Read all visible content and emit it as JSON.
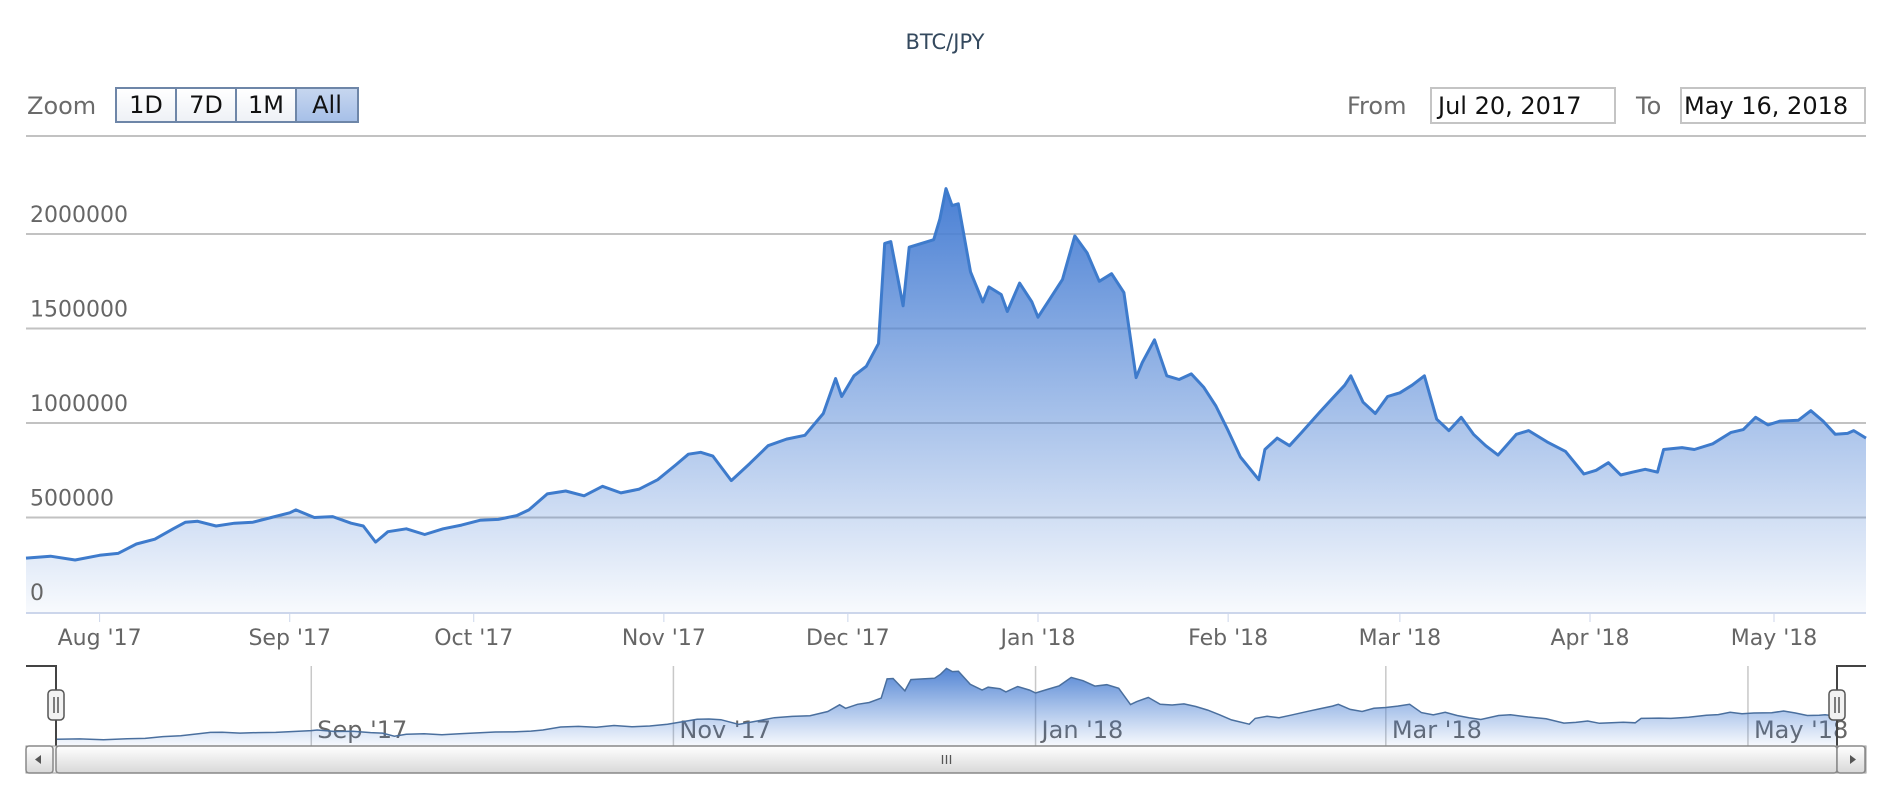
{
  "title": "BTC/JPY",
  "range_selector": {
    "zoom_label": "Zoom",
    "buttons": [
      {
        "label": "1D",
        "active": false
      },
      {
        "label": "7D",
        "active": false
      },
      {
        "label": "1M",
        "active": false
      },
      {
        "label": "All",
        "active": true
      }
    ],
    "from_label": "From",
    "from_value": "Jul 20, 2017",
    "to_label": "To",
    "to_value": "May 16, 2018"
  },
  "colors": {
    "series_line": "#3e7bcc",
    "series_fill_top": "#4a80d4",
    "grid": "#c2c2c2",
    "button_active": "#b0c6ea"
  },
  "chart_data": {
    "type": "area",
    "title": "BTC/JPY",
    "xlim": [
      "2017-07-20",
      "2018-05-16"
    ],
    "ylim": [
      0,
      2400000
    ],
    "yticks": [
      "0",
      "500000",
      "1000000",
      "1500000",
      "2000000"
    ],
    "ytick_values": [
      0,
      500000,
      1000000,
      1500000,
      2000000
    ],
    "xticks": [
      {
        "date": "2017-08-01",
        "label": "Aug '17"
      },
      {
        "date": "2017-09-01",
        "label": "Sep '17"
      },
      {
        "date": "2017-10-01",
        "label": "Oct '17"
      },
      {
        "date": "2017-11-01",
        "label": "Nov '17"
      },
      {
        "date": "2017-12-01",
        "label": "Dec '17"
      },
      {
        "date": "2018-01-01",
        "label": "Jan '18"
      },
      {
        "date": "2018-02-01",
        "label": "Feb '18"
      },
      {
        "date": "2018-03-01",
        "label": "Mar '18"
      },
      {
        "date": "2018-04-01",
        "label": "Apr '18"
      },
      {
        "date": "2018-05-01",
        "label": "May '18"
      }
    ],
    "navigator_xticks": [
      {
        "date": "2017-09-01",
        "label": "Sep '17"
      },
      {
        "date": "2017-11-01",
        "label": "Nov '17"
      },
      {
        "date": "2018-01-01",
        "label": "Jan '18"
      },
      {
        "date": "2018-03-01",
        "label": "Mar '18"
      },
      {
        "date": "2018-05-01",
        "label": "May '18"
      }
    ],
    "grid": true,
    "legend": "none",
    "points": [
      [
        "2017-07-20",
        285000
      ],
      [
        "2017-07-24",
        295000
      ],
      [
        "2017-07-28",
        275000
      ],
      [
        "2017-08-01",
        300000
      ],
      [
        "2017-08-04",
        310000
      ],
      [
        "2017-08-07",
        360000
      ],
      [
        "2017-08-10",
        385000
      ],
      [
        "2017-08-13",
        440000
      ],
      [
        "2017-08-15",
        475000
      ],
      [
        "2017-08-17",
        480000
      ],
      [
        "2017-08-20",
        455000
      ],
      [
        "2017-08-23",
        470000
      ],
      [
        "2017-08-26",
        475000
      ],
      [
        "2017-08-29",
        500000
      ],
      [
        "2017-09-01",
        525000
      ],
      [
        "2017-09-02",
        540000
      ],
      [
        "2017-09-05",
        500000
      ],
      [
        "2017-09-08",
        505000
      ],
      [
        "2017-09-11",
        470000
      ],
      [
        "2017-09-13",
        455000
      ],
      [
        "2017-09-15",
        370000
      ],
      [
        "2017-09-17",
        425000
      ],
      [
        "2017-09-20",
        440000
      ],
      [
        "2017-09-23",
        410000
      ],
      [
        "2017-09-26",
        440000
      ],
      [
        "2017-09-29",
        460000
      ],
      [
        "2017-10-02",
        485000
      ],
      [
        "2017-10-05",
        490000
      ],
      [
        "2017-10-08",
        510000
      ],
      [
        "2017-10-10",
        540000
      ],
      [
        "2017-10-13",
        625000
      ],
      [
        "2017-10-16",
        640000
      ],
      [
        "2017-10-19",
        615000
      ],
      [
        "2017-10-22",
        665000
      ],
      [
        "2017-10-25",
        630000
      ],
      [
        "2017-10-28",
        650000
      ],
      [
        "2017-10-31",
        700000
      ],
      [
        "2017-11-03",
        780000
      ],
      [
        "2017-11-05",
        835000
      ],
      [
        "2017-11-07",
        845000
      ],
      [
        "2017-11-09",
        825000
      ],
      [
        "2017-11-12",
        695000
      ],
      [
        "2017-11-15",
        785000
      ],
      [
        "2017-11-18",
        880000
      ],
      [
        "2017-11-21",
        915000
      ],
      [
        "2017-11-24",
        935000
      ],
      [
        "2017-11-27",
        1050000
      ],
      [
        "2017-11-29",
        1235000
      ],
      [
        "2017-11-30",
        1140000
      ],
      [
        "2017-12-02",
        1250000
      ],
      [
        "2017-12-04",
        1300000
      ],
      [
        "2017-12-06",
        1420000
      ],
      [
        "2017-12-07",
        1950000
      ],
      [
        "2017-12-08",
        1960000
      ],
      [
        "2017-12-10",
        1620000
      ],
      [
        "2017-12-11",
        1930000
      ],
      [
        "2017-12-13",
        1950000
      ],
      [
        "2017-12-15",
        1970000
      ],
      [
        "2017-12-16",
        2080000
      ],
      [
        "2017-12-17",
        2240000
      ],
      [
        "2017-12-18",
        2150000
      ],
      [
        "2017-12-19",
        2160000
      ],
      [
        "2017-12-21",
        1800000
      ],
      [
        "2017-12-23",
        1640000
      ],
      [
        "2017-12-24",
        1720000
      ],
      [
        "2017-12-26",
        1680000
      ],
      [
        "2017-12-27",
        1590000
      ],
      [
        "2017-12-29",
        1740000
      ],
      [
        "2017-12-31",
        1640000
      ],
      [
        "2018-01-01",
        1560000
      ],
      [
        "2018-01-03",
        1660000
      ],
      [
        "2018-01-05",
        1760000
      ],
      [
        "2018-01-07",
        1990000
      ],
      [
        "2018-01-09",
        1900000
      ],
      [
        "2018-01-11",
        1750000
      ],
      [
        "2018-01-13",
        1790000
      ],
      [
        "2018-01-15",
        1690000
      ],
      [
        "2018-01-17",
        1240000
      ],
      [
        "2018-01-18",
        1320000
      ],
      [
        "2018-01-20",
        1440000
      ],
      [
        "2018-01-22",
        1250000
      ],
      [
        "2018-01-24",
        1230000
      ],
      [
        "2018-01-26",
        1260000
      ],
      [
        "2018-01-28",
        1190000
      ],
      [
        "2018-01-30",
        1090000
      ],
      [
        "2018-02-01",
        960000
      ],
      [
        "2018-02-03",
        820000
      ],
      [
        "2018-02-06",
        700000
      ],
      [
        "2018-02-07",
        860000
      ],
      [
        "2018-02-09",
        920000
      ],
      [
        "2018-02-11",
        880000
      ],
      [
        "2018-02-13",
        950000
      ],
      [
        "2018-02-16",
        1060000
      ],
      [
        "2018-02-18",
        1130000
      ],
      [
        "2018-02-20",
        1200000
      ],
      [
        "2018-02-21",
        1250000
      ],
      [
        "2018-02-23",
        1110000
      ],
      [
        "2018-02-25",
        1050000
      ],
      [
        "2018-02-27",
        1140000
      ],
      [
        "2018-03-01",
        1160000
      ],
      [
        "2018-03-03",
        1200000
      ],
      [
        "2018-03-05",
        1250000
      ],
      [
        "2018-03-07",
        1020000
      ],
      [
        "2018-03-09",
        960000
      ],
      [
        "2018-03-11",
        1030000
      ],
      [
        "2018-03-13",
        940000
      ],
      [
        "2018-03-15",
        880000
      ],
      [
        "2018-03-17",
        830000
      ],
      [
        "2018-03-20",
        940000
      ],
      [
        "2018-03-22",
        960000
      ],
      [
        "2018-03-25",
        900000
      ],
      [
        "2018-03-28",
        850000
      ],
      [
        "2018-03-31",
        730000
      ],
      [
        "2018-04-02",
        750000
      ],
      [
        "2018-04-04",
        790000
      ],
      [
        "2018-04-06",
        725000
      ],
      [
        "2018-04-08",
        740000
      ],
      [
        "2018-04-10",
        755000
      ],
      [
        "2018-04-12",
        740000
      ],
      [
        "2018-04-13",
        860000
      ],
      [
        "2018-04-16",
        870000
      ],
      [
        "2018-04-18",
        860000
      ],
      [
        "2018-04-21",
        890000
      ],
      [
        "2018-04-24",
        950000
      ],
      [
        "2018-04-26",
        965000
      ],
      [
        "2018-04-28",
        1030000
      ],
      [
        "2018-04-30",
        990000
      ],
      [
        "2018-05-02",
        1010000
      ],
      [
        "2018-05-05",
        1015000
      ],
      [
        "2018-05-07",
        1065000
      ],
      [
        "2018-05-09",
        1010000
      ],
      [
        "2018-05-11",
        940000
      ],
      [
        "2018-05-13",
        945000
      ],
      [
        "2018-05-14",
        960000
      ],
      [
        "2018-05-16",
        920000
      ]
    ]
  }
}
